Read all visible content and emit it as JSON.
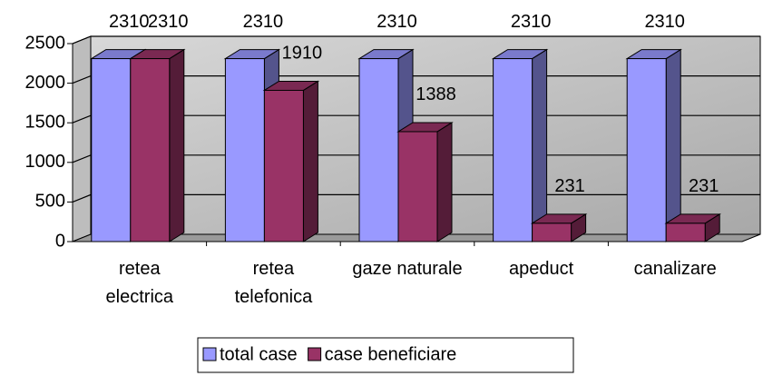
{
  "chart_data": {
    "type": "bar3d",
    "categories": [
      "retea\nelectrica",
      "retea\ntelefonica",
      "gaze naturale",
      "apeduct",
      "canalizare"
    ],
    "series": [
      {
        "name": "total case",
        "color": "#9999ff",
        "values": [
          2310,
          2310,
          2310,
          2310,
          2310
        ]
      },
      {
        "name": "case beneficiare",
        "color": "#993366",
        "values": [
          2310,
          1910,
          1388,
          231,
          231
        ]
      }
    ],
    "ylim": [
      0,
      2500
    ],
    "yticks": [
      0,
      500,
      1000,
      1500,
      2000,
      2500
    ],
    "grid": true,
    "legend": "bottom"
  }
}
